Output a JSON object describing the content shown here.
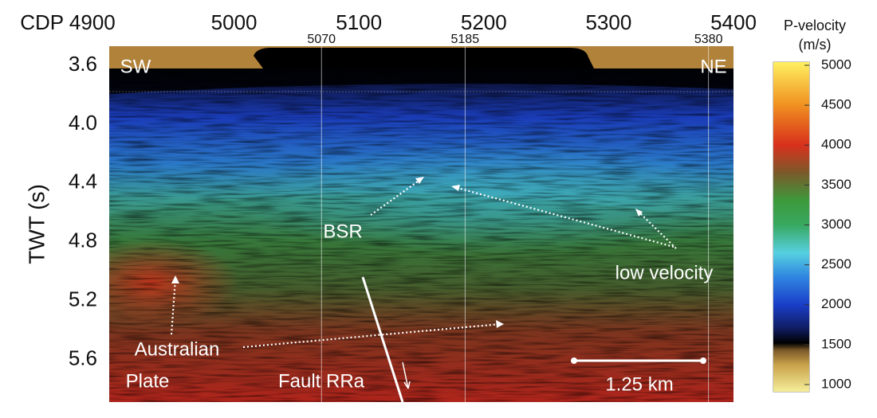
{
  "chart_data": {
    "type": "seismic-section",
    "xticks": [
      {
        "value": 4900,
        "label": "CDP 4900"
      },
      5000,
      5100,
      5200,
      5300,
      5400
    ],
    "xlim": [
      4900,
      5400
    ],
    "marker_lines": [
      5070,
      5185,
      5380
    ],
    "y_label": "TWT (s)",
    "yticks": [
      3.6,
      {
        "value": 4,
        "label": "4.0"
      },
      4.4,
      4.8,
      5.2,
      5.6
    ],
    "ylim": [
      3.47,
      5.89
    ],
    "annotations": [
      "SW",
      "NE",
      "BSR",
      "low velocity",
      "Australian",
      "Plate",
      "Fault RRa",
      "1.25 km"
    ],
    "colorbar": {
      "title": [
        "P-velocity",
        "(m/s)"
      ],
      "ticks": [
        1000,
        1500,
        2000,
        2500,
        3000,
        3500,
        4000,
        4500,
        5000
      ],
      "clim": [
        910,
        5040
      ],
      "colormap": [
        {
          "value": 910,
          "color": "#f6ee9a"
        },
        {
          "value": 1250,
          "color": "#c8a24a"
        },
        {
          "value": 1430,
          "color": "#7a5a28"
        },
        {
          "value": 1520,
          "color": "#000000"
        },
        {
          "value": 1700,
          "color": "#101c60"
        },
        {
          "value": 2000,
          "color": "#1a3ec8"
        },
        {
          "value": 2350,
          "color": "#2f86e0"
        },
        {
          "value": 2650,
          "color": "#56d0e0"
        },
        {
          "value": 3000,
          "color": "#38a860"
        },
        {
          "value": 3300,
          "color": "#3c9a3c"
        },
        {
          "value": 3650,
          "color": "#7a5a2a"
        },
        {
          "value": 4000,
          "color": "#d8301c"
        },
        {
          "value": 4500,
          "color": "#f09020"
        },
        {
          "value": 5040,
          "color": "#fff060"
        }
      ]
    }
  }
}
